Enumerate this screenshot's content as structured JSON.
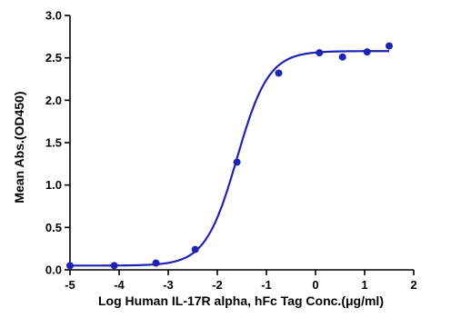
{
  "chart_data": {
    "type": "scatter",
    "title": "",
    "xlabel": "Log Human IL-17R alpha, hFc Tag Conc.(μg/ml)",
    "ylabel": "Mean Abs.(OD450)",
    "xlim": [
      -5,
      2
    ],
    "ylim": [
      0,
      3
    ],
    "x_ticks": [
      "-5",
      "-4",
      "-3",
      "-2",
      "-1",
      "0",
      "1",
      "2"
    ],
    "y_ticks": [
      "0.0",
      "0.5",
      "1.0",
      "1.5",
      "2.0",
      "2.5",
      "3.0"
    ],
    "grid": false,
    "legend": "none",
    "series": [
      {
        "color": "#1f23b4",
        "points": [
          {
            "x": -5.0,
            "y": 0.05
          },
          {
            "x": -4.1,
            "y": 0.05
          },
          {
            "x": -3.25,
            "y": 0.08
          },
          {
            "x": -2.45,
            "y": 0.24
          },
          {
            "x": -1.6,
            "y": 1.27
          },
          {
            "x": -0.75,
            "y": 2.32
          },
          {
            "x": 0.08,
            "y": 2.56
          },
          {
            "x": 0.55,
            "y": 2.51
          },
          {
            "x": 1.05,
            "y": 2.57
          },
          {
            "x": 1.5,
            "y": 2.64
          }
        ],
        "fit": {
          "model": "four-parameter logistic",
          "bottom": 0.05,
          "top": 2.58,
          "log_ec50": -1.6,
          "hill_slope": 1.35
        }
      }
    ]
  }
}
